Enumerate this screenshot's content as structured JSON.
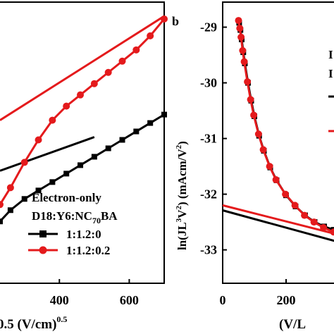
{
  "chart_data": [
    {
      "type": "scatter",
      "panel_label": "",
      "xlabel_prefix": "",
      "xlabel_main": "0.5 (V/cm)",
      "xlabel_sup": "0.5",
      "ylabel": "",
      "xlim": [
        230,
        700
      ],
      "ylim": [
        0,
        1
      ],
      "xticks": [
        400,
        600
      ],
      "xtick_labels": [
        "400",
        "600"
      ],
      "legend": {
        "title_line1": "Electron-only",
        "title_line2_pre": "D18:Y6:NC",
        "title_line2_sub": "70",
        "title_line2_post": "BA"
      },
      "series": [
        {
          "name": "1:1.2:0",
          "color": "#000000",
          "marker": "square",
          "x": [
            230,
            260,
            300,
            340,
            380,
            420,
            460,
            500,
            540,
            580,
            620,
            660,
            700
          ],
          "y": [
            0.22,
            0.26,
            0.3,
            0.33,
            0.36,
            0.39,
            0.42,
            0.45,
            0.48,
            0.51,
            0.54,
            0.57,
            0.6
          ]
        },
        {
          "name": "1:1.2:0.2",
          "color": "#e41a1c",
          "marker": "circle",
          "x": [
            230,
            260,
            300,
            340,
            380,
            420,
            460,
            500,
            540,
            580,
            620,
            660,
            700
          ],
          "y": [
            0.28,
            0.34,
            0.43,
            0.51,
            0.58,
            0.63,
            0.67,
            0.71,
            0.75,
            0.79,
            0.83,
            0.88,
            0.94
          ]
        }
      ],
      "fits": [
        {
          "color": "#e41a1c",
          "x": [
            230,
            700
          ],
          "y": [
            0.58,
            0.95
          ]
        },
        {
          "color": "#000000",
          "x": [
            230,
            500
          ],
          "y": [
            0.4,
            0.52
          ]
        }
      ]
    },
    {
      "type": "scatter",
      "panel_label": "b",
      "xlabel_main": "(V/L",
      "ylabel_pre": "ln(JL",
      "ylabel_sup1": "3",
      "ylabel_mid": "V",
      "ylabel_sup2": "2",
      "ylabel_post": ") (mAcm/V",
      "ylabel_sup3": "2",
      "ylabel_end": ")",
      "xlim": [
        0,
        360
      ],
      "ylim": [
        -33.6,
        -28.55
      ],
      "xticks": [
        0,
        200
      ],
      "xtick_labels": [
        "0",
        "200"
      ],
      "yticks": [
        -29,
        -30,
        -31,
        -32,
        -33
      ],
      "ytick_labels": [
        "-29",
        "-30",
        "-31",
        "-32",
        "-33"
      ],
      "legend_fragments": [
        "I",
        "I"
      ],
      "series": [
        {
          "name": "",
          "color": "#000000",
          "marker": "square",
          "x": [
            52,
            56,
            60,
            65,
            70,
            80,
            90,
            100,
            115,
            130,
            150,
            170,
            200,
            230,
            260,
            290,
            320,
            350
          ],
          "y": [
            -28.92,
            -29.05,
            -29.22,
            -29.45,
            -29.65,
            -30.0,
            -30.32,
            -30.6,
            -30.95,
            -31.22,
            -31.52,
            -31.75,
            -32.02,
            -32.22,
            -32.38,
            -32.5,
            -32.58,
            -32.64
          ]
        },
        {
          "name": "",
          "color": "#e41a1c",
          "marker": "circle",
          "x": [
            50,
            54,
            58,
            63,
            68,
            78,
            88,
            98,
            113,
            128,
            148,
            168,
            198,
            228,
            258,
            288,
            318,
            350
          ],
          "y": [
            -28.88,
            -29.02,
            -29.18,
            -29.42,
            -29.62,
            -29.98,
            -30.3,
            -30.58,
            -30.92,
            -31.2,
            -31.5,
            -31.74,
            -32.0,
            -32.2,
            -32.38,
            -32.5,
            -32.6,
            -32.68
          ]
        }
      ],
      "fits": [
        {
          "color": "#e41a1c",
          "x": [
            0,
            360
          ],
          "y": [
            -32.2,
            -32.72
          ]
        },
        {
          "color": "#000000",
          "x": [
            0,
            360
          ],
          "y": [
            -32.29,
            -32.85
          ]
        }
      ],
      "legend_line_colors": [
        "#000000",
        "#e41a1c"
      ]
    }
  ]
}
